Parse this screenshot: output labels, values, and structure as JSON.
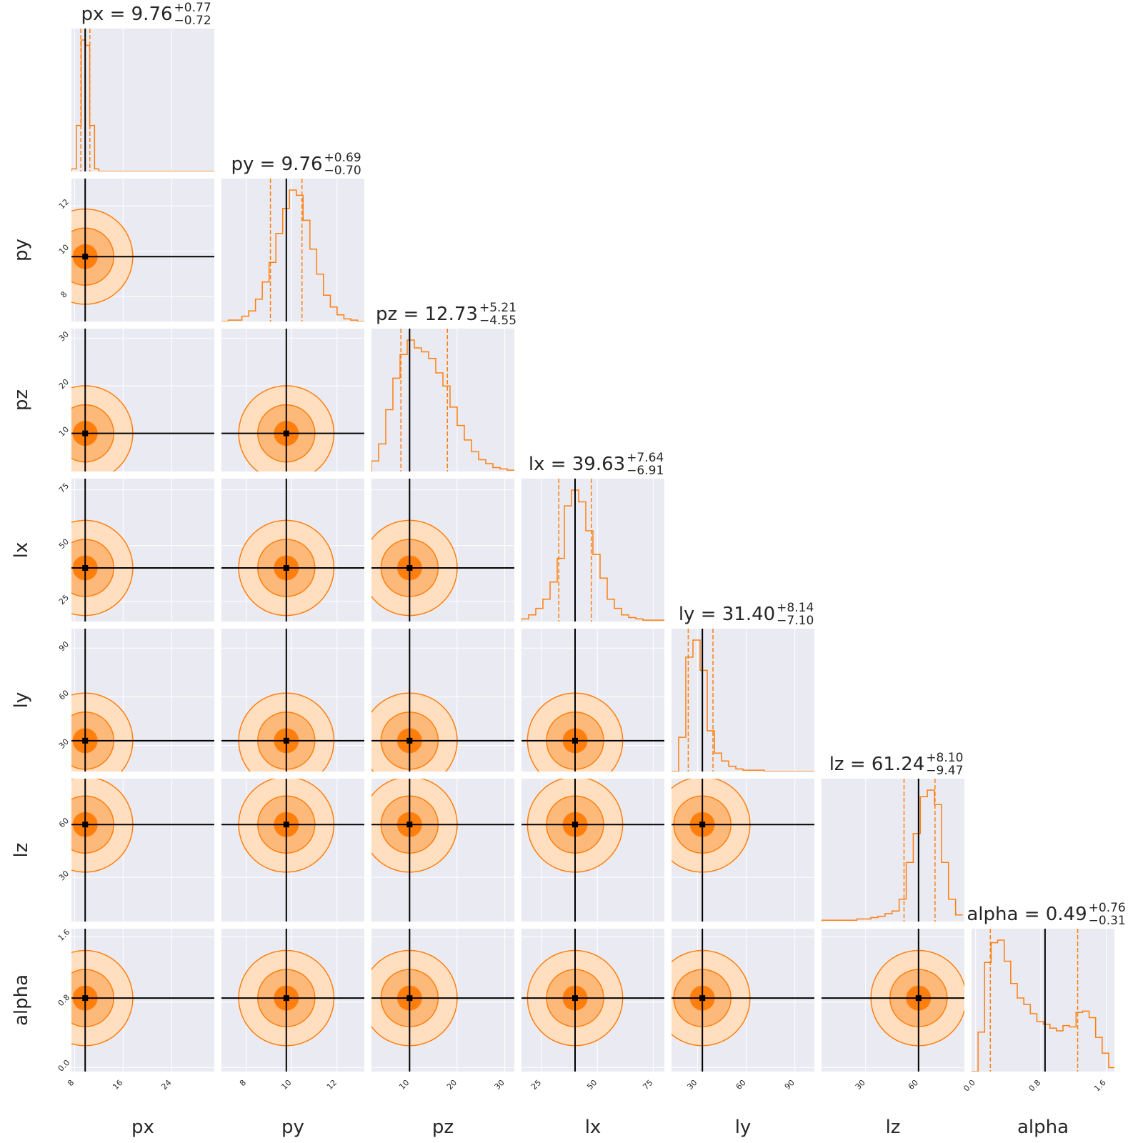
{
  "chart_data": {
    "type": "corner",
    "params": [
      "px",
      "py",
      "pz",
      "lx",
      "ly",
      "lz",
      "alpha"
    ],
    "labels": [
      "px",
      "py",
      "pz",
      "lx",
      "ly",
      "lz",
      "alpha"
    ],
    "ranges": [
      [
        7.5,
        31.0
      ],
      [
        6.9,
        13.2
      ],
      [
        2.0,
        32.0
      ],
      [
        16.0,
        80.0
      ],
      [
        14.0,
        102.0
      ],
      [
        5.0,
        86.0
      ],
      [
        -0.05,
        1.7
      ]
    ],
    "truths": [
      9.76,
      9.76,
      10.0,
      40.0,
      33.0,
      60.0,
      0.85
    ],
    "ticks": {
      "x": [
        [
          8,
          16,
          24
        ],
        [
          8,
          10,
          12
        ],
        [
          10,
          20,
          30
        ],
        [
          25,
          50,
          75
        ],
        [
          30,
          60,
          90
        ],
        [
          30,
          60
        ],
        [
          0.0,
          0.8,
          1.6
        ]
      ],
      "y": [
        null,
        [
          8,
          10,
          12
        ],
        [
          10,
          20,
          30
        ],
        [
          25,
          50,
          75
        ],
        [
          30,
          60,
          90
        ],
        [
          30,
          60
        ],
        [
          0.0,
          0.8,
          1.6
        ]
      ]
    },
    "tick_labels": {
      "x": [
        [
          "8",
          "16",
          "24"
        ],
        [
          "8",
          "10",
          "12"
        ],
        [
          "10",
          "20",
          "30"
        ],
        [
          "25",
          "50",
          "75"
        ],
        [
          "30",
          "60",
          "90"
        ],
        [
          "30",
          "60"
        ],
        [
          "0.0",
          "0.8",
          "1.6"
        ]
      ],
      "y": [
        [],
        [
          "8",
          "10",
          "12"
        ],
        [
          "10",
          "20",
          "30"
        ],
        [
          "25",
          "50",
          "75"
        ],
        [
          "30",
          "60",
          "90"
        ],
        [
          "30",
          "60"
        ],
        [
          "0.0",
          "0.8",
          "1.6"
        ]
      ]
    },
    "titles": [
      {
        "param": "px",
        "median": "9.76",
        "plus": "+0.77",
        "minus": "−0.72"
      },
      {
        "param": "py",
        "median": "9.76",
        "plus": "+0.69",
        "minus": "−0.70"
      },
      {
        "param": "pz",
        "median": "12.73",
        "plus": "+5.21",
        "minus": "−4.55"
      },
      {
        "param": "lx",
        "median": "39.63",
        "plus": "+7.64",
        "minus": "−6.91"
      },
      {
        "param": "ly",
        "median": "31.40",
        "plus": "+8.14",
        "minus": "−7.10"
      },
      {
        "param": "lz",
        "median": "61.24",
        "plus": "+8.10",
        "minus": "−9.47"
      },
      {
        "param": "alpha",
        "median": "0.49",
        "plus": "+0.76",
        "minus": "−0.31"
      }
    ],
    "quantiles": [
      [
        9.04,
        10.53
      ],
      [
        9.06,
        10.45
      ],
      [
        8.18,
        17.94
      ],
      [
        32.72,
        47.27
      ],
      [
        24.3,
        39.54
      ],
      [
        51.77,
        69.34
      ],
      [
        0.18,
        1.25
      ]
    ],
    "histograms": [
      {
        "bins": [
          7.5,
          8.3,
          9.1,
          9.8,
          10.5,
          11.3,
          12.0,
          12.8,
          31.0
        ],
        "counts": [
          0.02,
          0.35,
          1.0,
          0.96,
          0.35,
          0.02,
          0.0,
          0.0
        ]
      },
      {
        "bins": [
          6.9,
          7.2,
          7.5,
          7.8,
          8.1,
          8.4,
          8.7,
          9.0,
          9.3,
          9.6,
          9.9,
          10.2,
          10.5,
          10.8,
          11.1,
          11.4,
          11.7,
          12.0,
          12.3,
          12.6,
          12.9,
          13.2
        ],
        "counts": [
          0.0,
          0.01,
          0.01,
          0.04,
          0.08,
          0.17,
          0.3,
          0.45,
          0.67,
          0.86,
          1.0,
          0.96,
          0.77,
          0.55,
          0.36,
          0.2,
          0.11,
          0.05,
          0.02,
          0.01,
          0.0
        ]
      },
      {
        "bins": [
          2,
          3.5,
          5,
          6.5,
          8,
          9.5,
          11,
          12.5,
          14,
          15.5,
          17,
          18.5,
          20,
          21.5,
          23,
          24.5,
          26,
          27.5,
          29,
          30.5,
          32
        ],
        "counts": [
          0.08,
          0.21,
          0.47,
          0.71,
          0.89,
          1.0,
          0.94,
          0.91,
          0.86,
          0.75,
          0.65,
          0.49,
          0.35,
          0.24,
          0.15,
          0.09,
          0.06,
          0.03,
          0.02,
          0.01
        ]
      },
      {
        "bins": [
          16,
          19.2,
          22.4,
          25.6,
          28.8,
          32,
          35.2,
          38.4,
          41.6,
          44.8,
          48,
          51.2,
          54.4,
          57.6,
          60.8,
          64,
          67.2,
          70.4,
          73.6,
          76.8,
          80
        ],
        "counts": [
          0.02,
          0.05,
          0.1,
          0.17,
          0.3,
          0.48,
          0.88,
          1.0,
          0.91,
          0.69,
          0.51,
          0.33,
          0.17,
          0.1,
          0.05,
          0.03,
          0.02,
          0.01,
          0.01,
          0.01
        ]
      },
      {
        "bins": [
          14,
          18.4,
          22.8,
          27.2,
          31.6,
          36,
          40.4,
          44.8,
          49.2,
          53.6,
          58,
          62.4,
          66.8,
          71.2,
          75.6,
          80,
          84.4,
          88.8,
          93.2,
          97.6,
          102
        ],
        "counts": [
          0.0,
          0.26,
          0.87,
          1.0,
          0.77,
          0.31,
          0.14,
          0.08,
          0.04,
          0.02,
          0.01,
          0.01,
          0.01,
          0.0,
          0.0,
          0.0,
          0.0,
          0.0,
          0.0,
          0.0
        ]
      },
      {
        "bins": [
          5,
          9,
          13,
          17,
          21,
          25,
          29,
          33,
          37,
          41,
          45,
          49,
          53,
          57,
          61,
          65,
          69,
          73,
          77,
          81,
          85
        ],
        "counts": [
          0.01,
          0.01,
          0.01,
          0.01,
          0.01,
          0.02,
          0.02,
          0.03,
          0.04,
          0.06,
          0.08,
          0.17,
          0.45,
          0.67,
          0.95,
          1.0,
          0.89,
          0.45,
          0.17,
          0.05
        ]
      },
      {
        "bins": [
          -0.05,
          0.03,
          0.11,
          0.19,
          0.27,
          0.35,
          0.43,
          0.51,
          0.59,
          0.67,
          0.75,
          0.83,
          0.91,
          0.99,
          1.07,
          1.15,
          1.23,
          1.31,
          1.39,
          1.47,
          1.55,
          1.63,
          1.7
        ],
        "counts": [
          0.0,
          0.3,
          0.83,
          0.98,
          1.0,
          0.84,
          0.67,
          0.56,
          0.51,
          0.44,
          0.38,
          0.36,
          0.33,
          0.31,
          0.35,
          0.34,
          0.45,
          0.46,
          0.41,
          0.26,
          0.14,
          0.03
        ]
      }
    ],
    "contours_2d": [
      {
        "x": "py",
        "y": "px",
        "center": [
          9.76,
          9.76
        ],
        "sigma": [
          0.7,
          0.75
        ],
        "rho": 0.0
      },
      {
        "x": "pz",
        "y": "px",
        "center": [
          11.0,
          9.76
        ],
        "sigma": [
          5.0,
          0.75
        ],
        "rho": 0.0
      },
      {
        "x": "pz",
        "y": "py",
        "center": [
          11.5,
          9.8
        ],
        "sigma": [
          5.5,
          0.75
        ],
        "rho": 0.0
      },
      {
        "x": "lx",
        "y": "px",
        "center": [
          39.6,
          9.76
        ],
        "sigma": [
          7.5,
          0.75
        ],
        "rho": 0.0
      },
      {
        "x": "lx",
        "y": "py",
        "center": [
          40.0,
          9.8
        ],
        "sigma": [
          7.5,
          0.75
        ],
        "rho": 0.0
      },
      {
        "x": "lx",
        "y": "pz",
        "center": [
          40.0,
          12.0
        ],
        "sigma": [
          7.0,
          5.0
        ],
        "rho": -0.5
      },
      {
        "x": "ly",
        "y": "px",
        "center": [
          31.4,
          9.76
        ],
        "sigma": [
          8.0,
          0.75
        ],
        "rho": 0.0
      },
      {
        "x": "ly",
        "y": "py",
        "center": [
          31.4,
          9.8
        ],
        "sigma": [
          8.0,
          0.75
        ],
        "rho": 0.0
      },
      {
        "x": "ly",
        "y": "pz",
        "center": [
          31.0,
          12.0
        ],
        "sigma": [
          8.0,
          5.0
        ],
        "rho": -0.5
      },
      {
        "x": "ly",
        "y": "lx",
        "center": [
          31.0,
          40.0
        ],
        "sigma": [
          8.0,
          7.0
        ],
        "rho": 0.1
      },
      {
        "x": "lz",
        "y": "px",
        "center": [
          61.0,
          9.76
        ],
        "sigma": [
          9.0,
          0.75
        ],
        "rho": 0.0
      },
      {
        "x": "lz",
        "y": "py",
        "center": [
          61.0,
          9.8
        ],
        "sigma": [
          9.0,
          0.75
        ],
        "rho": 0.0
      },
      {
        "x": "lz",
        "y": "pz",
        "center": [
          60.0,
          13.0
        ],
        "sigma": [
          9.0,
          5.0
        ],
        "rho": 0.55
      },
      {
        "x": "lz",
        "y": "lx",
        "center": [
          60.0,
          39.0
        ],
        "sigma": [
          9.0,
          7.0
        ],
        "rho": -0.45
      },
      {
        "x": "lz",
        "y": "ly",
        "center": [
          61.0,
          30.0
        ],
        "sigma": [
          9.0,
          8.0
        ],
        "rho": -0.5
      },
      {
        "x": "alpha",
        "y": "px",
        "center": [
          0.45,
          9.76
        ],
        "sigma": [
          0.45,
          0.75
        ],
        "rho": 0.0
      },
      {
        "x": "alpha",
        "y": "py",
        "center": [
          0.45,
          9.8
        ],
        "sigma": [
          0.45,
          0.75
        ],
        "rho": 0.0
      },
      {
        "x": "alpha",
        "y": "pz",
        "center": [
          0.4,
          13.0
        ],
        "sigma": [
          0.45,
          5.0
        ],
        "rho": -0.3
      },
      {
        "x": "alpha",
        "y": "lx",
        "center": [
          0.4,
          40.0
        ],
        "sigma": [
          0.45,
          7.0
        ],
        "rho": -0.25
      },
      {
        "x": "alpha",
        "y": "ly",
        "center": [
          0.4,
          30.0
        ],
        "sigma": [
          0.45,
          8.0
        ],
        "rho": -0.3
      },
      {
        "x": "alpha",
        "y": "lz",
        "center": [
          0.45,
          61.0
        ],
        "sigma": [
          0.45,
          9.0
        ],
        "rho": 0.0
      }
    ],
    "levels": [
      0.5,
      1.2,
      2.0
    ],
    "colors": {
      "line": "#ff7f0e",
      "fill_outer": "#ffdfc0",
      "fill_mid": "#fdb97a",
      "fill_inner": "#ff7f0e",
      "truth": "#000000",
      "panel_bg": "#eaeaf2",
      "grid": "#ffffff"
    },
    "grid": true
  }
}
